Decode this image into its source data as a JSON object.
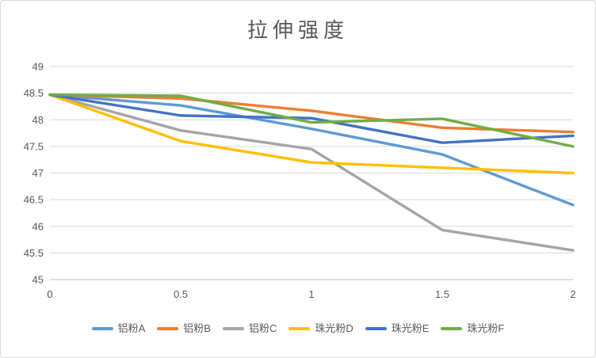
{
  "chart": {
    "background": "#FFFFFF",
    "border_color": "#D9D9D9",
    "text_color": "#595959",
    "grid_color": "#D9D9D9",
    "axis_line_color": "#BFBFBF"
  },
  "chart_data": {
    "type": "line",
    "title": "拉伸强度",
    "xlabel": "",
    "ylabel": "",
    "xlim": [
      0,
      2
    ],
    "ylim": [
      45,
      49
    ],
    "x": [
      0,
      0.5,
      1,
      1.5,
      2
    ],
    "x_tick_labels": [
      "0",
      "0.5",
      "1",
      "1.5",
      "2"
    ],
    "y_ticks": [
      45,
      45.5,
      46,
      46.5,
      47,
      47.5,
      48,
      48.5,
      49
    ],
    "y_tick_labels": [
      "45",
      "45.5",
      "46",
      "46.5",
      "47",
      "47.5",
      "48",
      "48.5",
      "49"
    ],
    "grid": true,
    "legend_position": "bottom",
    "series": [
      {
        "name": "铝粉A",
        "color": "#5B9BD5",
        "values": [
          48.47,
          48.27,
          47.83,
          47.35,
          46.4
        ]
      },
      {
        "name": "铝粉B",
        "color": "#ED7D31",
        "values": [
          48.47,
          48.4,
          48.17,
          47.85,
          47.77
        ]
      },
      {
        "name": "铝粉C",
        "color": "#A5A5A5",
        "values": [
          48.47,
          47.8,
          47.45,
          45.93,
          45.55
        ]
      },
      {
        "name": "珠光粉D",
        "color": "#FFC000",
        "values": [
          48.47,
          47.6,
          47.2,
          47.1,
          47.0
        ]
      },
      {
        "name": "珠光粉E",
        "color": "#4472C4",
        "values": [
          48.47,
          48.08,
          48.03,
          47.57,
          47.7
        ]
      },
      {
        "name": "珠光粉F",
        "color": "#70AD47",
        "values": [
          48.47,
          48.45,
          47.95,
          48.02,
          47.5
        ]
      }
    ]
  }
}
